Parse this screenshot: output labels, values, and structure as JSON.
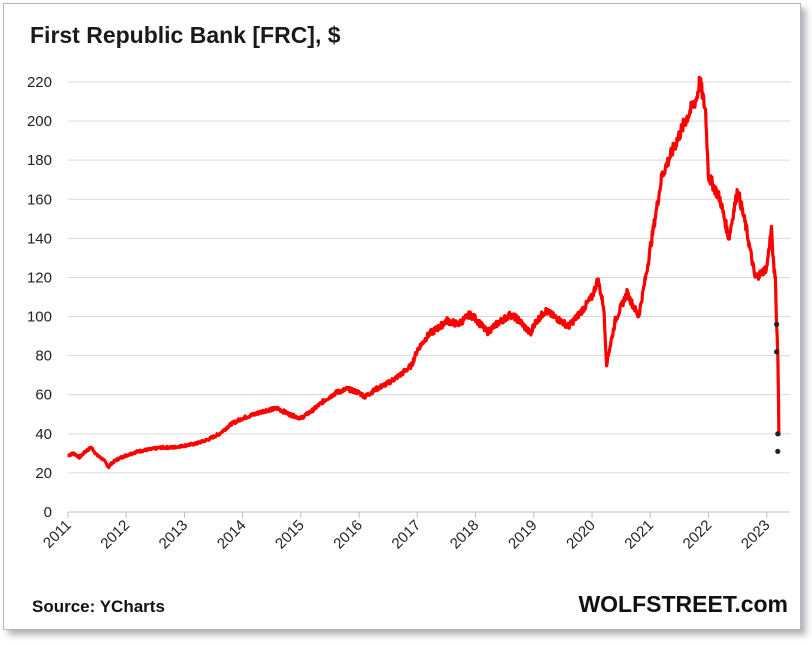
{
  "header": {
    "title": "First Republic Bank [FRC], $"
  },
  "footer": {
    "source": "Source: YCharts",
    "brand": "WOLFSTREET.com"
  },
  "chart_data": {
    "type": "line",
    "title": "First Republic Bank [FRC], $",
    "xlabel": "",
    "ylabel": "",
    "ylim": [
      0,
      220
    ],
    "xlim": [
      2011,
      2023.4
    ],
    "grid": true,
    "legend": "none",
    "y_ticks": [
      "0",
      "20",
      "40",
      "60",
      "80",
      "100",
      "120",
      "140",
      "160",
      "180",
      "200",
      "220"
    ],
    "x_ticks": [
      "2011",
      "2012",
      "2013",
      "2014",
      "2015",
      "2016",
      "2017",
      "2018",
      "2019",
      "2020",
      "2021",
      "2022",
      "2023"
    ],
    "line_color": "#ff0000",
    "series": [
      {
        "x": [
          2011.0,
          2011.1,
          2011.2,
          2011.3,
          2011.4,
          2011.5,
          2011.6,
          2011.7,
          2011.75,
          2011.85,
          2012.0,
          2012.2,
          2012.4,
          2012.6,
          2012.8,
          2013.0,
          2013.2,
          2013.4,
          2013.6,
          2013.8,
          2014.0,
          2014.2,
          2014.4,
          2014.6,
          2014.8,
          2015.0,
          2015.2,
          2015.4,
          2015.6,
          2015.8,
          2016.0,
          2016.1,
          2016.3,
          2016.5,
          2016.7,
          2016.9,
          2017.0,
          2017.2,
          2017.4,
          2017.5,
          2017.7,
          2017.9,
          2018.0,
          2018.2,
          2018.4,
          2018.6,
          2018.75,
          2018.95,
          2019.0,
          2019.2,
          2019.4,
          2019.6,
          2019.8,
          2020.0,
          2020.1,
          2020.2,
          2020.25,
          2020.4,
          2020.6,
          2020.8,
          2020.95,
          2021.0,
          2021.2,
          2021.4,
          2021.6,
          2021.8,
          2021.85,
          2021.95,
          2022.0,
          2022.2,
          2022.35,
          2022.5,
          2022.65,
          2022.8,
          2022.9,
          2023.0,
          2023.08,
          2023.12,
          2023.15,
          2023.17,
          2023.19,
          2023.21
        ],
        "values": [
          29,
          30,
          28,
          31,
          33,
          29,
          27,
          23,
          25,
          27,
          29,
          31,
          32,
          33,
          33,
          34,
          35,
          37,
          40,
          45,
          48,
          50,
          52,
          53,
          50,
          48,
          52,
          57,
          61,
          63,
          61,
          59,
          63,
          66,
          70,
          75,
          83,
          91,
          95,
          98,
          96,
          101,
          99,
          92,
          97,
          101,
          98,
          91,
          96,
          103,
          99,
          95,
          102,
          110,
          119,
          105,
          76,
          98,
          112,
          100,
          125,
          135,
          172,
          186,
          200,
          212,
          221,
          205,
          172,
          160,
          140,
          165,
          145,
          120,
          122,
          125,
          145,
          125,
          120,
          96,
          82,
          39
        ]
      }
    ],
    "marked_points": [
      {
        "x": 2023.17,
        "y": 96
      },
      {
        "x": 2023.17,
        "y": 82
      },
      {
        "x": 2023.19,
        "y": 40
      },
      {
        "x": 2023.19,
        "y": 31
      }
    ]
  }
}
